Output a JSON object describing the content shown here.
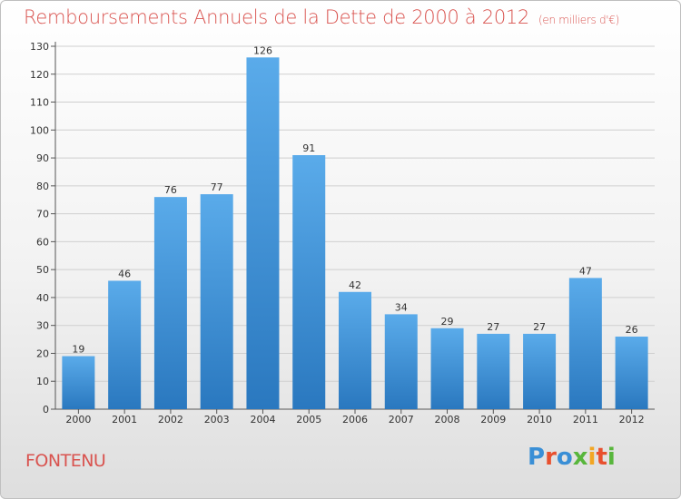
{
  "chart_data": {
    "type": "bar",
    "title": "Remboursements Annuels de la Dette de 2000 à 2012",
    "subtitle": "(en milliers d'€)",
    "categories": [
      "2000",
      "2001",
      "2002",
      "2003",
      "2004",
      "2005",
      "2006",
      "2007",
      "2008",
      "2009",
      "2010",
      "2011",
      "2012"
    ],
    "values": [
      19,
      46,
      76,
      77,
      126,
      91,
      42,
      34,
      29,
      27,
      27,
      47,
      26
    ],
    "ylim": [
      0,
      130
    ],
    "yticks": [
      0,
      10,
      20,
      30,
      40,
      50,
      60,
      70,
      80,
      90,
      100,
      110,
      120,
      130
    ],
    "grid": true,
    "bar_color": "#3a8fd6",
    "xlabel": "",
    "ylabel": ""
  },
  "footer": {
    "town": "FONTENU",
    "logo": "Proxiti",
    "logo_colors": [
      "#3a8fd6",
      "#e8502e",
      "#3a8fd6",
      "#58b63c",
      "#f2a623",
      "#e8502e",
      "#58b63c"
    ]
  }
}
